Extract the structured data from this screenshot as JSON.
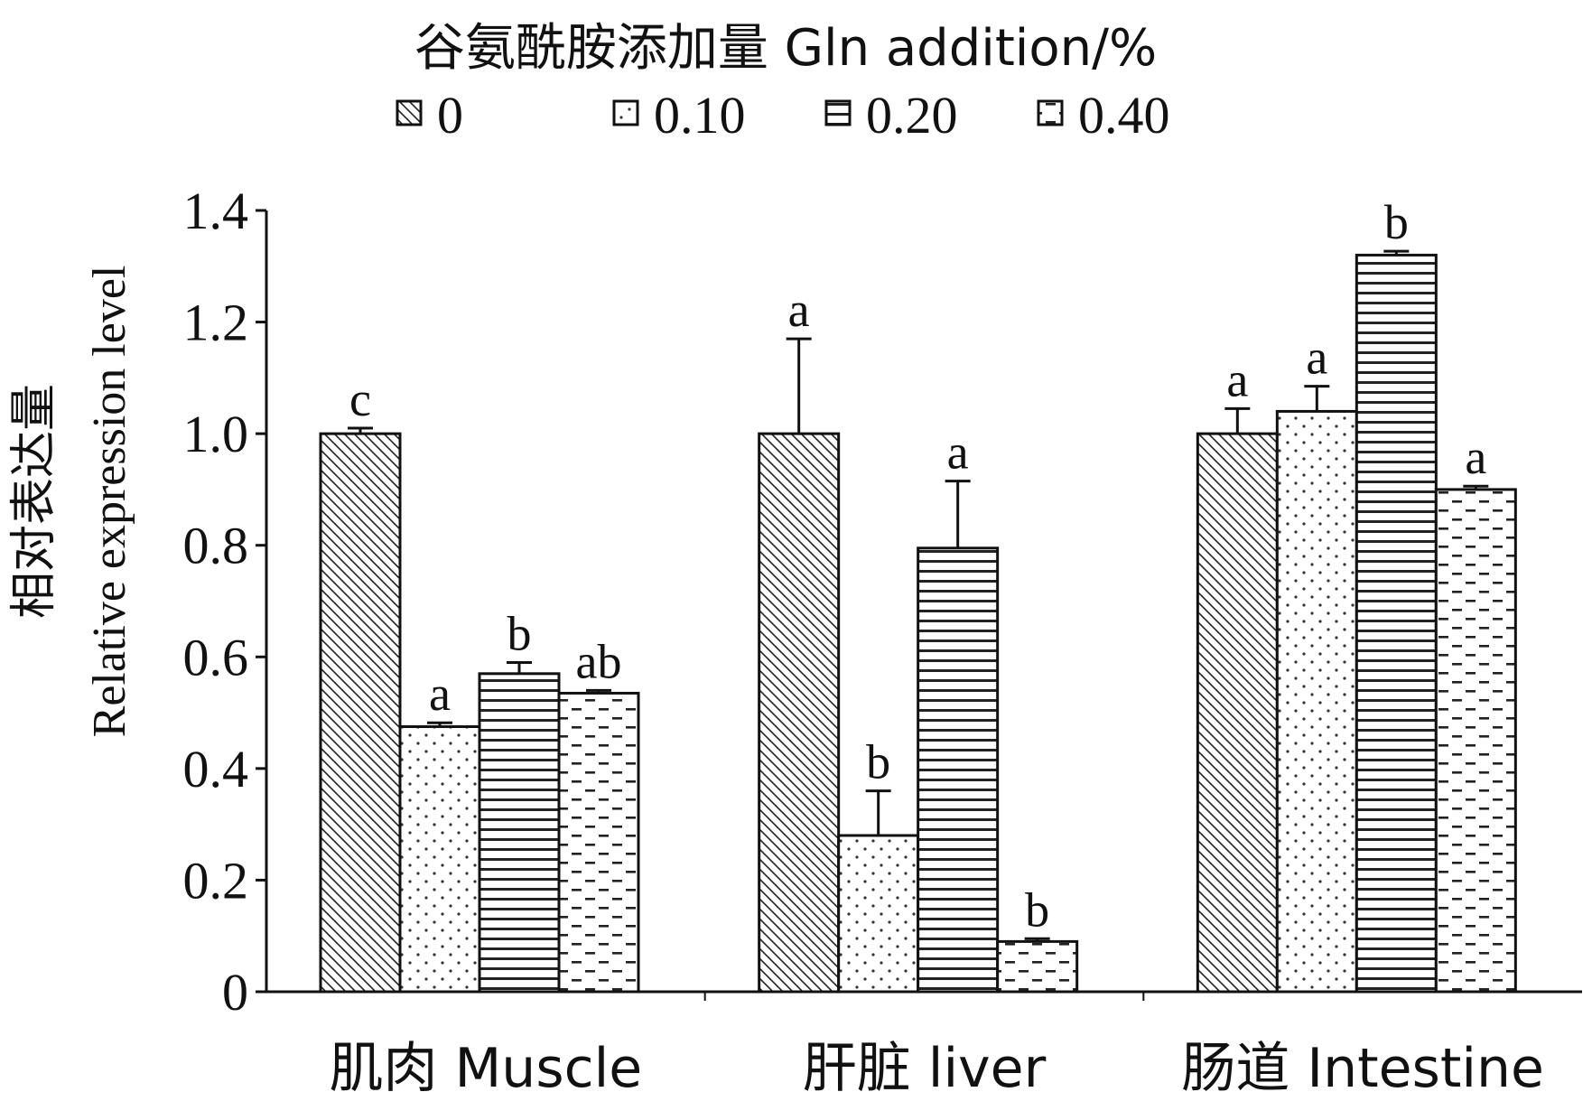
{
  "chart_data": {
    "type": "bar",
    "legend": {
      "title": "谷氨酰胺添加量 Gln addition/%",
      "position": "top-center",
      "entries": [
        "0",
        "0.10",
        "0.20",
        "0.40"
      ]
    },
    "ylabel_cn": "相对表达量",
    "ylabel_en": "Relative expression level",
    "ylim": [
      0,
      1.4
    ],
    "yticks": [
      "0",
      "0.2",
      "0.4",
      "0.6",
      "0.8",
      "1.0",
      "1.2",
      "1.4"
    ],
    "categories": [
      "肌肉  Muscle",
      "肝脏  liver",
      "肠道  Intestine"
    ],
    "grid": false,
    "patterns": [
      "diagonal-hatch",
      "dots",
      "horizontal-lines",
      "dashes"
    ],
    "series": [
      {
        "name": "0",
        "values": [
          1.0,
          1.0,
          1.0
        ],
        "errors": [
          0.01,
          0.17,
          0.045
        ],
        "letters": [
          "c",
          "a",
          "a"
        ]
      },
      {
        "name": "0.10",
        "values": [
          0.475,
          0.28,
          1.04
        ],
        "errors": [
          0.007,
          0.08,
          0.045
        ],
        "letters": [
          "a",
          "b",
          "a"
        ]
      },
      {
        "name": "0.20",
        "values": [
          0.57,
          0.795,
          1.32
        ],
        "errors": [
          0.02,
          0.12,
          0.007
        ],
        "letters": [
          "b",
          "a",
          "b"
        ]
      },
      {
        "name": "0.40",
        "values": [
          0.535,
          0.09,
          0.9
        ],
        "errors": [
          0.005,
          0.005,
          0.006
        ],
        "letters": [
          "ab",
          "b",
          "a"
        ]
      }
    ]
  }
}
